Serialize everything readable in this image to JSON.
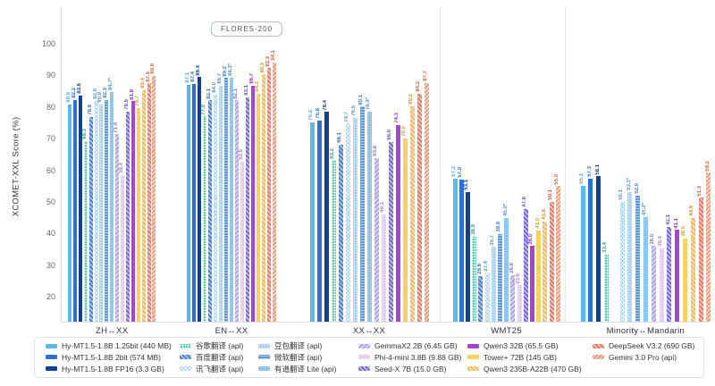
{
  "badge_label": "FLORES-200",
  "y_axis": {
    "label": "XCOMET-XXL Score (%)",
    "ticks": [
      100,
      90,
      80,
      70,
      60,
      50,
      40,
      30,
      20
    ]
  },
  "chart_data": {
    "type": "bar",
    "title": "FLORES-200",
    "xlabel": "",
    "ylabel": "XCOMET-XXL Score (%)",
    "ylim": [
      20,
      100
    ],
    "grid": false,
    "legend_position": "bottom",
    "categories": [
      "ZH↔XX",
      "EN↔XX",
      "XX↔XX",
      "WMT25",
      "Minority↔Mandarin"
    ],
    "series": [
      {
        "name": "Hy-MT1.5-1.8B 1.25bit (440 MB)",
        "values": [
          80.9,
          87.1,
          75.2,
          57.3,
          55.1
        ],
        "labels": [
          "80.9",
          "87.1",
          "75.2",
          "57.3",
          "55.1"
        ],
        "color": "#5bb9e9",
        "label_color": "#57abde",
        "pattern": "solid"
      },
      {
        "name": "Hy-MT1.5-1.8B 2bit (574 MB)",
        "values": [
          82.2,
          87.4,
          75.8,
          57.0,
          57.3
        ],
        "labels": [
          "82.2",
          "87.4",
          "75.8",
          "57.0",
          "57.3"
        ],
        "color": "#2d70cf",
        "label_color": "#2d70cf",
        "pattern": "solid"
      },
      {
        "name": "Hy-MT1.5-1.8B FP16 (3.3 GB)",
        "values": [
          83.6,
          89.4,
          78.4,
          53.1,
          58.1
        ],
        "labels": [
          "83.6",
          "89.4",
          "78.4",
          "53.1",
          "58.1"
        ],
        "color": "#153f8f",
        "label_color": "#153f8f",
        "pattern": "solid"
      },
      {
        "name": "谷歌翻译 (api)",
        "values": [
          69.3,
          77.0,
          63.2,
          38.9,
          33.4
        ],
        "labels": [
          "69.3",
          "77.0",
          "63.2",
          "38.9",
          "33.4"
        ],
        "color": "#5ec7a9",
        "label_color": "#2f9f83",
        "pattern": "grid"
      },
      {
        "name": "百度翻译 (api)",
        "values": [
          76.9,
          82.1,
          68.1,
          26.6,
          null
        ],
        "labels": [
          "76.9",
          "82.1",
          "68.1",
          "26.6",
          null
        ],
        "color": "#4f86d8",
        "label_color": "#3a6cc0",
        "pattern": "diag-up"
      },
      {
        "name": "讯飞翻译 (api)",
        "values": [
          82.0,
          84.0,
          74.7,
          27.4,
          50.1
        ],
        "labels": [
          "82.0",
          "84.0",
          "74.7",
          "27.4",
          "50.1"
        ],
        "color": "#9bcdee",
        "label_color": "#5b94c4",
        "pattern": "cross"
      },
      {
        "name": "豆包翻译 (api)",
        "values": [
          80.9,
          86.7,
          76.5,
          35.7,
          53.1
        ],
        "labels": [
          "80.9",
          "86.7",
          "76.5",
          "35.7",
          "53.1*"
        ],
        "color": "#aed6f2",
        "label_color": "#5b94c4",
        "pattern": "dot"
      },
      {
        "name": "微软翻译 (api)",
        "values": [
          82.3,
          89.2,
          80.1,
          39.9,
          52.0
        ],
        "labels": [
          "82.3",
          "89.2",
          "80.1",
          "39.9",
          "52.0"
        ],
        "color": "#5e9ad8",
        "label_color": "#3f7ac2",
        "pattern": "hlines"
      },
      {
        "name": "有道翻译 Lite (api)",
        "values": [
          84.7,
          89.3,
          78.4,
          45.0,
          45.2
        ],
        "labels": [
          "84.7*",
          "89.3*",
          "78.4*",
          "45.0*",
          "45.2*"
        ],
        "color": "#85c0ec",
        "label_color": "#4f93cc",
        "pattern": "dot-fine"
      },
      {
        "name": "GemmaX2 2B (6.45 GB)",
        "values": [
          71.4,
          82.1,
          63.8,
          26.8,
          36.0
        ],
        "labels": [
          "71.4",
          "82.1",
          "63.8",
          "26.8",
          "36.0"
        ],
        "color": "#b3a8e6",
        "label_color": "#8377c6",
        "pattern": "diag-down"
      },
      {
        "name": "Phi-4-mini 3.8B (9.88 GB)",
        "values": [
          58.4,
          62.8,
          46.1,
          23.6,
          35.4
        ],
        "labels": [
          "58.4",
          "62.8",
          "46.1",
          "23.6",
          "35.4"
        ],
        "color": "#e3cdf0",
        "label_color": "#a985c5",
        "pattern": "dot"
      },
      {
        "name": "Seed-X 7B (15.0 GB)",
        "values": [
          78.6,
          83.1,
          69.0,
          47.8,
          42.1
        ],
        "labels": [
          "78.6",
          "83.1",
          "69.0",
          "47.8",
          "42.1"
        ],
        "color": "#7e70d2",
        "label_color": "#6254b8",
        "pattern": "diag-up"
      },
      {
        "name": "Qwen3 32B (65.5 GB)",
        "values": [
          81.8,
          86.7,
          74.3,
          36.0,
          41.1
        ],
        "labels": [
          "81.8",
          "86.7",
          "74.3",
          "36.0",
          "41.1"
        ],
        "color": "#a845d0",
        "label_color": "#9231bd",
        "pattern": "solid"
      },
      {
        "name": "Tower+ 72B (145 GB)",
        "values": [
          79.7,
          84.2,
          70.0,
          41.0,
          38.5
        ],
        "labels": [
          "79.7",
          "84.2",
          "70.0",
          "41.0",
          "38.5"
        ],
        "color": "#f6d166",
        "label_color": "#cda133",
        "pattern": "solid"
      },
      {
        "name": "Qwen3 235B-A22B (470 GB)",
        "values": [
          85.4,
          90.3,
          80.2,
          43.8,
          44.9
        ],
        "labels": [
          "85.4",
          "90.3",
          "80.2",
          "43.8",
          "44.9"
        ],
        "color": "#f3bd62",
        "label_color": "#d6942f",
        "pattern": "diag-up"
      },
      {
        "name": "DeepSeek V3.2 (690 GB)",
        "values": [
          87.5,
          92.3,
          84.2,
          50.1,
          51.3
        ],
        "labels": [
          "87.5",
          "92.3",
          "84.2",
          "50.1",
          "51.3"
        ],
        "color": "#e77f70",
        "label_color": "#d25a49",
        "pattern": "diag-up"
      },
      {
        "name": "Gemini 3.0 Pro (api)",
        "values": [
          89.8,
          94.1,
          87.7,
          55.0,
          59.2
        ],
        "labels": [
          "89.8",
          "94.1",
          "87.7",
          "55.0",
          "59.2"
        ],
        "color": "#ea9b79",
        "label_color": "#d4663c",
        "pattern": "chevron"
      }
    ]
  }
}
